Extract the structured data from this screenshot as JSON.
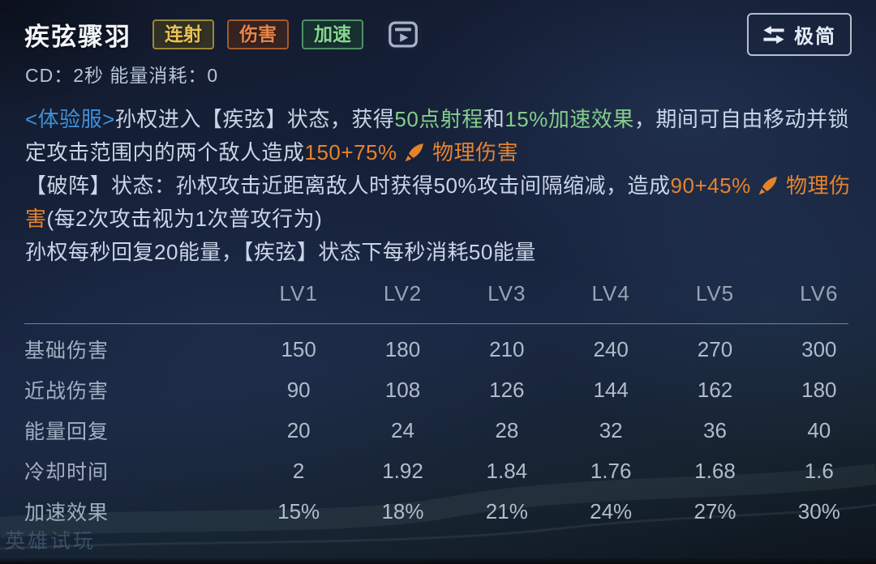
{
  "skill": {
    "name": "疾弦骤羽",
    "cd_label": "CD：2秒 能量消耗：0",
    "mode_button_label": "极简",
    "tags": [
      {
        "label": "连射",
        "style": "gold",
        "color": "#ecc254",
        "border": "#9a8739",
        "bg": "rgba(96,82,24,0.40)"
      },
      {
        "label": "伤害",
        "style": "orange",
        "color": "#e8854a",
        "border": "#a55a28",
        "bg": "rgba(105,48,16,0.40)"
      },
      {
        "label": "加速",
        "style": "green",
        "color": "#85d792",
        "border": "#4f9166",
        "bg": "rgba(28,82,48,0.38)"
      }
    ]
  },
  "colors": {
    "plain": "#c9d5e7",
    "blue": "#4090da",
    "green": "#85cd8a",
    "orange": "#e5832c"
  },
  "icons": {
    "video": "video-play-icon",
    "mode_switch": "swap-arrows-icon",
    "physical_damage": "physical-damage-dart-icon"
  },
  "description": {
    "lines": [
      [
        {
          "text": "<体验服>",
          "style": "blue"
        },
        {
          "text": "孙权进入【疾弦】状态，获得",
          "style": "plain"
        },
        {
          "text": "50点射程",
          "style": "green"
        },
        {
          "text": "和",
          "style": "plain"
        },
        {
          "text": "15%加速效果",
          "style": "green"
        },
        {
          "text": "，期间可自由移动并锁",
          "style": "plain"
        }
      ],
      [
        {
          "text": "定攻击范围内的两个敌人造成",
          "style": "plain"
        },
        {
          "text": "150+75%",
          "style": "orange"
        },
        {
          "icon": "physical-damage-dart-icon"
        },
        {
          "text": "物理伤害",
          "style": "orange"
        }
      ],
      [
        {
          "text": "【破阵】状态：孙权攻击近距离敌人时获得50%攻击间隔缩减，造成",
          "style": "plain"
        },
        {
          "text": "90+45%",
          "style": "orange"
        },
        {
          "icon": "physical-damage-dart-icon"
        },
        {
          "text": "物理伤",
          "style": "orange"
        }
      ],
      [
        {
          "text": "害",
          "style": "orange"
        },
        {
          "text": "(每2次攻击视为1次普攻行为)",
          "style": "plain"
        }
      ],
      [
        {
          "text": "孙权每秒回复20能量，【疾弦】状态下每秒消耗50能量",
          "style": "plain"
        }
      ]
    ]
  },
  "table": {
    "levels": [
      "LV1",
      "LV2",
      "LV3",
      "LV4",
      "LV5",
      "LV6"
    ],
    "rows": [
      {
        "label": "基础伤害",
        "values": [
          "150",
          "180",
          "210",
          "240",
          "270",
          "300"
        ]
      },
      {
        "label": "近战伤害",
        "values": [
          "90",
          "108",
          "126",
          "144",
          "162",
          "180"
        ]
      },
      {
        "label": "能量回复",
        "values": [
          "20",
          "24",
          "28",
          "32",
          "36",
          "40"
        ]
      },
      {
        "label": "冷却时间",
        "values": [
          "2",
          "1.92",
          "1.84",
          "1.76",
          "1.68",
          "1.6"
        ]
      },
      {
        "label": "加速效果",
        "values": [
          "15%",
          "18%",
          "21%",
          "24%",
          "27%",
          "30%"
        ]
      }
    ]
  },
  "watermark": "英雄试玩"
}
